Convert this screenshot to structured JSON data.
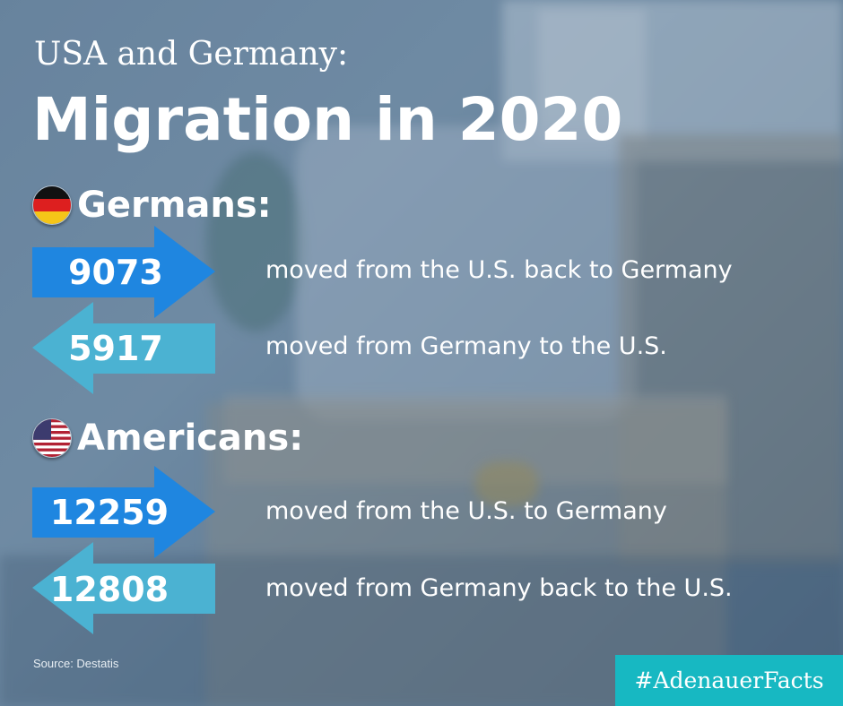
{
  "header": {
    "subtitle": "USA and Germany:",
    "title": "Migration in 2020"
  },
  "sections": [
    {
      "heading": "Germans:",
      "flag_icon": "germany-flag-icon",
      "rows": [
        {
          "number": "9073",
          "direction": "right",
          "description": "moved from the U.S. back to Germany"
        },
        {
          "number": "5917",
          "direction": "left",
          "description": "moved from Germany to the U.S."
        }
      ]
    },
    {
      "heading": "Americans:",
      "flag_icon": "usa-flag-icon",
      "rows": [
        {
          "number": "12259",
          "direction": "right",
          "description": "moved from the U.S. to Germany"
        },
        {
          "number": "12808",
          "direction": "left",
          "description": "moved from Germany back to the U.S."
        }
      ]
    }
  ],
  "footer": {
    "source": "Source: Destatis",
    "hashtag": "#AdenauerFacts"
  },
  "colors": {
    "arrow_right": "#1f86e0",
    "arrow_left": "#4bb2d2",
    "hashtag_bg": "#17b8c2",
    "text": "#ffffff"
  }
}
